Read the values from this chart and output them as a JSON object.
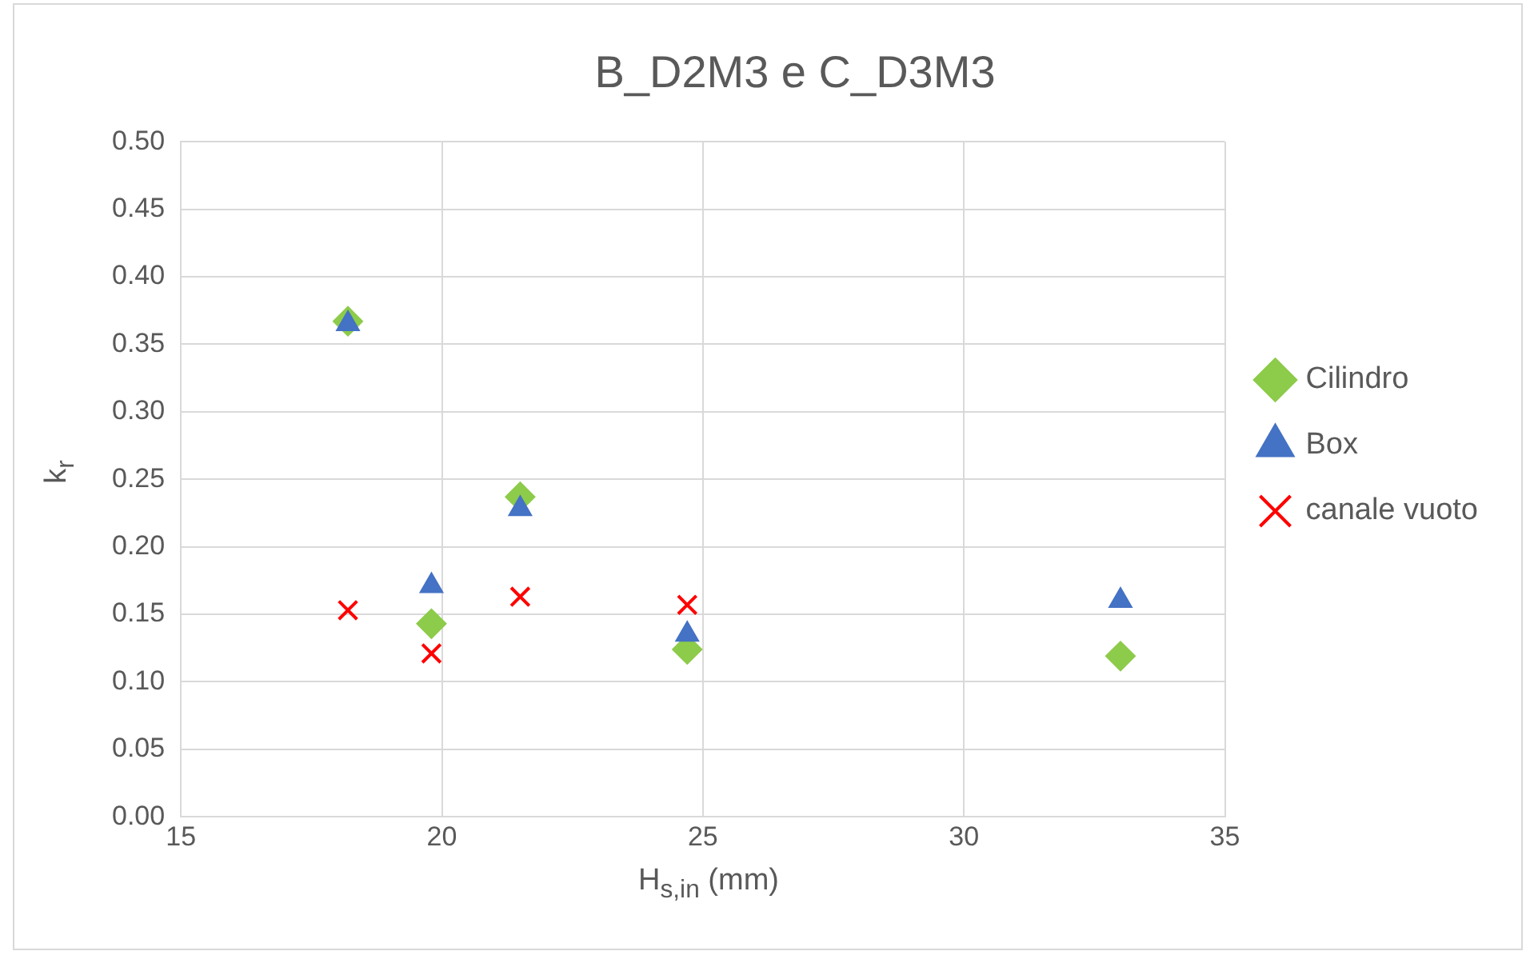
{
  "chart_data": {
    "type": "scatter",
    "title": "B_D2M3 e C_D3M3",
    "xlabel": "H$_{s,in}$  (mm)",
    "ylabel": "k$_{r}$",
    "xlim": [
      15,
      35
    ],
    "xticks": [
      15,
      20,
      25,
      30,
      35
    ],
    "ylim": [
      0,
      0.5
    ],
    "yticks": [
      {
        "value": 0,
        "label": "0.00"
      },
      {
        "value": 0.05,
        "label": "0.05"
      },
      {
        "value": 0.1,
        "label": "0.10"
      },
      {
        "value": 0.15,
        "label": "0.15"
      },
      {
        "value": 0.2,
        "label": "0.20"
      },
      {
        "value": 0.25,
        "label": "0.25"
      },
      {
        "value": 0.3,
        "label": "0.30"
      },
      {
        "value": 0.35,
        "label": "0.35"
      },
      {
        "value": 0.4,
        "label": "0.40"
      },
      {
        "value": 0.45,
        "label": "0.45"
      },
      {
        "value": 0.5,
        "label": "0.50"
      }
    ],
    "grid": true,
    "legend": "right",
    "series": [
      {
        "name": "Cilindro",
        "color": "#8dcb4a",
        "marker": "diamond",
        "x": [
          18.2,
          19.8,
          21.5,
          24.7,
          33
        ],
        "values": [
          0.367,
          0.143,
          0.237,
          0.124,
          0.119
        ]
      },
      {
        "name": "Box",
        "color": "#4472c4",
        "marker": "triangle",
        "x": [
          18.2,
          19.8,
          21.5,
          24.7,
          33
        ],
        "values": [
          0.365,
          0.171,
          0.228,
          0.135,
          0.16
        ]
      },
      {
        "name": "canale vuoto",
        "color": "#ff0000",
        "marker": "cross",
        "x": [
          18.2,
          19.8,
          21.5,
          24.7
        ],
        "values": [
          0.153,
          0.121,
          0.163,
          0.157
        ]
      }
    ]
  }
}
